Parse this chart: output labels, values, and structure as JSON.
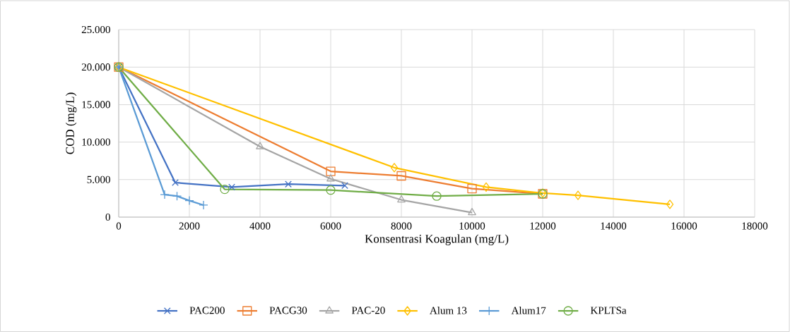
{
  "chart_data": {
    "type": "line",
    "xlabel": "Konsentrasi  Koagulan (mg/L)",
    "ylabel": "COD (mg/L)",
    "xlim": [
      0,
      18000
    ],
    "xticks": [
      0,
      2000,
      4000,
      6000,
      8000,
      10000,
      12000,
      14000,
      16000,
      18000
    ],
    "ylim": [
      0,
      25000
    ],
    "yticks": [
      {
        "value": 0,
        "label": "0"
      },
      {
        "value": 5000,
        "label": "5.000"
      },
      {
        "value": 10000,
        "label": "10.000"
      },
      {
        "value": 15000,
        "label": "15.000"
      },
      {
        "value": 20000,
        "label": "20.000"
      },
      {
        "value": 25000,
        "label": "25.000"
      }
    ],
    "grid": true,
    "legend": "bottom",
    "line_style": "solid",
    "series": [
      {
        "name": "PAC200",
        "color": "#4472c4",
        "marker": "cross",
        "x": [
          0,
          1600,
          3200,
          4800,
          6400
        ],
        "values": [
          20000,
          4600,
          4000,
          4400,
          4200
        ]
      },
      {
        "name": "PACG30",
        "color": "#ed7d31",
        "marker": "square",
        "x": [
          0,
          6000,
          8000,
          10000,
          12000
        ],
        "values": [
          20000,
          6100,
          5500,
          3800,
          3100
        ]
      },
      {
        "name": "PAC-20",
        "color": "#a5a5a5",
        "marker": "triangle",
        "x": [
          0,
          4000,
          6000,
          8000,
          10000
        ],
        "values": [
          20000,
          9400,
          5100,
          2300,
          600
        ]
      },
      {
        "name": "Alum 13",
        "color": "#ffc000",
        "marker": "diamond",
        "x": [
          0,
          7800,
          10400,
          12000,
          13000,
          15600
        ],
        "values": [
          20000,
          6600,
          4000,
          3200,
          2900,
          1700
        ]
      },
      {
        "name": "Alum17",
        "color": "#5b9bd5",
        "marker": "plus",
        "x": [
          0,
          1300,
          1650,
          2000,
          2400
        ],
        "values": [
          20000,
          3000,
          2800,
          2200,
          1600
        ]
      },
      {
        "name": "KPLTSa",
        "color": "#70ad47",
        "marker": "circle",
        "x": [
          0,
          3000,
          6000,
          9000,
          12000
        ],
        "values": [
          20000,
          3700,
          3600,
          2800,
          3100
        ]
      }
    ]
  }
}
